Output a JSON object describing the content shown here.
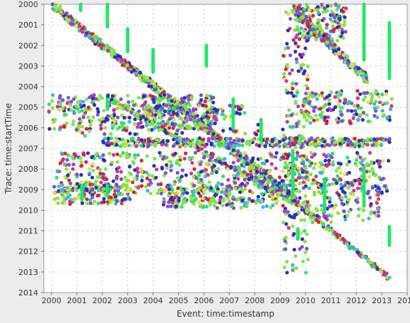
{
  "chart_data": {
    "type": "scatter",
    "title": "",
    "xlabel": "Event: time:timestamp",
    "ylabel": "Trace: time:startTime",
    "xlim": [
      1999.7,
      2014.0
    ],
    "ylim": [
      2000.0,
      2014.0
    ],
    "y_inverted": true,
    "grid": true,
    "legend": "none",
    "x_ticks": [
      "2000",
      "2001",
      "2002",
      "2003",
      "2004",
      "2005",
      "2006",
      "2007",
      "2008",
      "2009",
      "2010",
      "2011",
      "2012",
      "2013",
      "2014"
    ],
    "y_ticks": [
      "2000",
      "2001",
      "2002",
      "2003",
      "2004",
      "2005",
      "2006",
      "2007",
      "2008",
      "2009",
      "2010",
      "2011",
      "2012",
      "2013",
      "2014"
    ],
    "colors": {
      "lime": "#88e244",
      "green": "#22e66a",
      "blue": "#2b2fb8",
      "purple": "#7a4fd6",
      "magenta": "#d92f9a",
      "yellow": "#e0e048",
      "red": "#e0202c",
      "cyan": "#3cb4e0"
    },
    "point_groups": [
      {
        "shape": "diagonal",
        "x": [
          2000.0,
          2009.6
        ],
        "y": [
          2000.0,
          2009.5
        ],
        "spread": 0.35,
        "n": 700
      },
      {
        "shape": "diagonal",
        "x": [
          2002.3,
          2009.5
        ],
        "y": [
          2004.6,
          2009.6
        ],
        "spread": 0.25,
        "n": 220
      },
      {
        "shape": "diagonal",
        "x": [
          2009.6,
          2013.3
        ],
        "y": [
          2009.6,
          2013.3
        ],
        "spread": 0.18,
        "n": 140
      },
      {
        "shape": "diagonal",
        "x": [
          2009.5,
          2012.4
        ],
        "y": [
          2000.2,
          2003.6
        ],
        "spread": 0.4,
        "n": 260
      },
      {
        "shape": "band",
        "x": [
          1999.9,
          2006.5
        ],
        "y": [
          2004.4,
          2006.1
        ],
        "n": 380
      },
      {
        "shape": "band",
        "x": [
          2003.8,
          2005.0
        ],
        "y": [
          2004.9,
          2005.4
        ],
        "n": 60
      },
      {
        "shape": "band",
        "x": [
          2006.0,
          2007.6
        ],
        "y": [
          2004.9,
          2005.6
        ],
        "n": 45
      },
      {
        "shape": "band",
        "x": [
          2002.0,
          2013.4
        ],
        "y": [
          2006.5,
          2006.9
        ],
        "n": 400
      },
      {
        "shape": "band",
        "x": [
          2000.2,
          2013.3
        ],
        "y": [
          2007.2,
          2009.2
        ],
        "n": 600
      },
      {
        "shape": "band",
        "x": [
          2000.1,
          2003.2
        ],
        "y": [
          2008.7,
          2009.7
        ],
        "n": 160
      },
      {
        "shape": "band",
        "x": [
          2004.4,
          2008.9
        ],
        "y": [
          2008.8,
          2009.9
        ],
        "n": 200
      },
      {
        "shape": "band",
        "x": [
          2009.1,
          2010.1
        ],
        "y": [
          2000.0,
          2013.2
        ],
        "n": 220
      },
      {
        "shape": "band",
        "x": [
          2009.6,
          2011.6
        ],
        "y": [
          2000.0,
          2001.8
        ],
        "n": 160
      },
      {
        "shape": "band",
        "x": [
          2009.9,
          2013.4
        ],
        "y": [
          2004.2,
          2005.8
        ],
        "n": 160
      },
      {
        "shape": "band",
        "x": [
          2010.1,
          2013.0
        ],
        "y": [
          2008.4,
          2010.6
        ],
        "n": 120
      },
      {
        "shape": "band",
        "x": [
          2000.9,
          2008.3
        ],
        "y": [
          2005.8,
          2006.4
        ],
        "n": 60
      }
    ],
    "vertical_streaks": [
      {
        "x": 2001.15,
        "y": [
          2000.0,
          2000.3
        ]
      },
      {
        "x": 2002.2,
        "y": [
          2000.0,
          2001.1
        ]
      },
      {
        "x": 2003.0,
        "y": [
          2001.2,
          2002.3
        ]
      },
      {
        "x": 2004.0,
        "y": [
          2002.2,
          2003.3
        ]
      },
      {
        "x": 2006.1,
        "y": [
          2002.0,
          2003.0
        ]
      },
      {
        "x": 2002.2,
        "y": [
          2004.6,
          2005.1
        ]
      },
      {
        "x": 2007.15,
        "y": [
          2004.6,
          2006.0
        ]
      },
      {
        "x": 2008.25,
        "y": [
          2005.6,
          2006.6
        ]
      },
      {
        "x": 2001.2,
        "y": [
          2008.8,
          2009.5
        ]
      },
      {
        "x": 2002.2,
        "y": [
          2008.8,
          2009.3
        ]
      },
      {
        "x": 2009.5,
        "y": [
          2007.1,
          2009.3
        ]
      },
      {
        "x": 2010.75,
        "y": [
          2008.6,
          2010.1
        ]
      },
      {
        "x": 2012.3,
        "y": [
          2000.0,
          2002.7
        ]
      },
      {
        "x": 2013.3,
        "y": [
          2000.9,
          2003.6
        ]
      },
      {
        "x": 2012.3,
        "y": [
          2007.9,
          2009.8
        ]
      },
      {
        "x": 2013.3,
        "y": [
          2010.8,
          2011.7
        ]
      },
      {
        "x": 2009.7,
        "y": [
          2010.9,
          2011.4
        ]
      }
    ]
  }
}
